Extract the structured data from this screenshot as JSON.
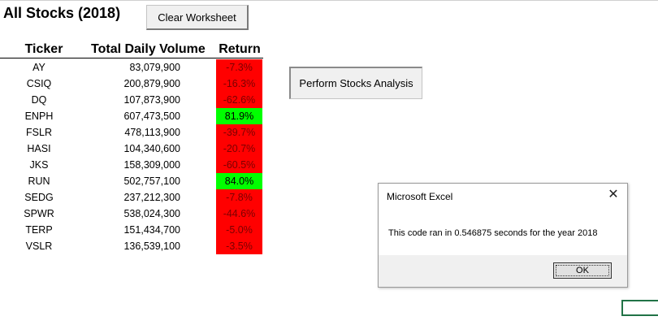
{
  "sheet": {
    "title": "All Stocks (2018)",
    "clear_button": "Clear Worksheet",
    "perform_button": "Perform Stocks Analysis",
    "headers": {
      "ticker": "Ticker",
      "volume": "Total Daily Volume",
      "return": "Return"
    },
    "rows": [
      {
        "ticker": "AY",
        "volume": "83,079,900",
        "return": "-7.3%",
        "positive": false
      },
      {
        "ticker": "CSIQ",
        "volume": "200,879,900",
        "return": "-16.3%",
        "positive": false
      },
      {
        "ticker": "DQ",
        "volume": "107,873,900",
        "return": "-62.6%",
        "positive": false
      },
      {
        "ticker": "ENPH",
        "volume": "607,473,500",
        "return": "81.9%",
        "positive": true
      },
      {
        "ticker": "FSLR",
        "volume": "478,113,900",
        "return": "-39.7%",
        "positive": false
      },
      {
        "ticker": "HASI",
        "volume": "104,340,600",
        "return": "-20.7%",
        "positive": false
      },
      {
        "ticker": "JKS",
        "volume": "158,309,000",
        "return": "-60.5%",
        "positive": false
      },
      {
        "ticker": "RUN",
        "volume": "502,757,100",
        "return": "84.0%",
        "positive": true
      },
      {
        "ticker": "SEDG",
        "volume": "237,212,300",
        "return": "-7.8%",
        "positive": false
      },
      {
        "ticker": "SPWR",
        "volume": "538,024,300",
        "return": "-44.6%",
        "positive": false
      },
      {
        "ticker": "TERP",
        "volume": "151,434,700",
        "return": "-5.0%",
        "positive": false
      },
      {
        "ticker": "VSLR",
        "volume": "136,539,100",
        "return": "-3.5%",
        "positive": false
      }
    ]
  },
  "dialog": {
    "title": "Microsoft Excel",
    "message": "This code ran in 0.546875 seconds for the year 2018",
    "ok_label": "OK",
    "close_icon": "close-icon"
  },
  "colors": {
    "negative": "#ff0000",
    "positive": "#00ff00",
    "selection": "#217346"
  }
}
